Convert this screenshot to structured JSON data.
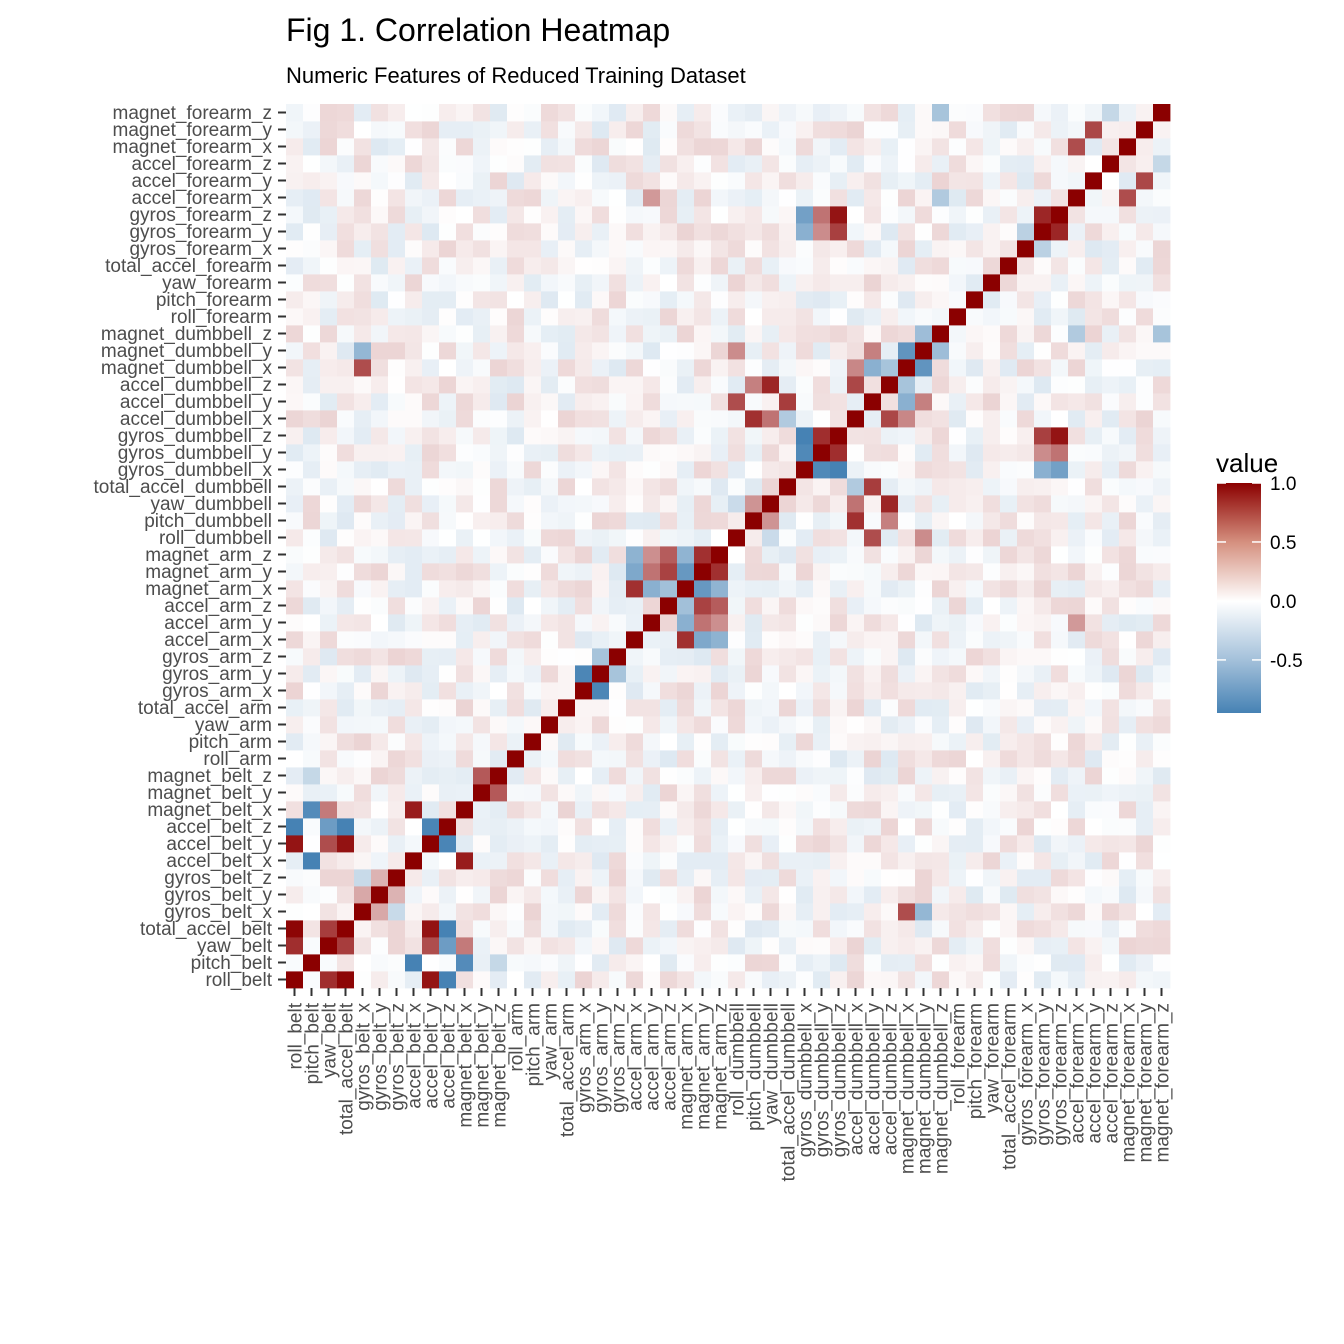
{
  "chart_data": {
    "type": "heatmap",
    "title": "Fig 1. Correlation Heatmap",
    "subtitle": "Numeric Features of Reduced Training Dataset",
    "xlabel": "",
    "ylabel": "",
    "variables": [
      "roll_belt",
      "pitch_belt",
      "yaw_belt",
      "total_accel_belt",
      "gyros_belt_x",
      "gyros_belt_y",
      "gyros_belt_z",
      "accel_belt_x",
      "accel_belt_y",
      "accel_belt_z",
      "magnet_belt_x",
      "magnet_belt_y",
      "magnet_belt_z",
      "roll_arm",
      "pitch_arm",
      "yaw_arm",
      "total_accel_arm",
      "gyros_arm_x",
      "gyros_arm_y",
      "gyros_arm_z",
      "accel_arm_x",
      "accel_arm_y",
      "accel_arm_z",
      "magnet_arm_x",
      "magnet_arm_y",
      "magnet_arm_z",
      "roll_dumbbell",
      "pitch_dumbbell",
      "yaw_dumbbell",
      "total_accel_dumbbell",
      "gyros_dumbbell_x",
      "gyros_dumbbell_y",
      "gyros_dumbbell_z",
      "accel_dumbbell_x",
      "accel_dumbbell_y",
      "accel_dumbbell_z",
      "magnet_dumbbell_x",
      "magnet_dumbbell_y",
      "magnet_dumbbell_z",
      "roll_forearm",
      "pitch_forearm",
      "yaw_forearm",
      "total_accel_forearm",
      "gyros_forearm_x",
      "gyros_forearm_y",
      "gyros_forearm_z",
      "accel_forearm_x",
      "accel_forearm_y",
      "accel_forearm_z",
      "magnet_forearm_x",
      "magnet_forearm_y",
      "magnet_forearm_z"
    ],
    "strong_pairs": [
      [
        "roll_belt",
        "total_accel_belt",
        0.98
      ],
      [
        "roll_belt",
        "yaw_belt",
        0.82
      ],
      [
        "roll_belt",
        "accel_belt_y",
        0.92
      ],
      [
        "roll_belt",
        "accel_belt_z",
        -0.99
      ],
      [
        "pitch_belt",
        "accel_belt_x",
        -0.97
      ],
      [
        "pitch_belt",
        "magnet_belt_x",
        -0.88
      ],
      [
        "pitch_belt",
        "magnet_belt_z",
        -0.3
      ],
      [
        "yaw_belt",
        "total_accel_belt",
        0.76
      ],
      [
        "yaw_belt",
        "accel_belt_z",
        -0.75
      ],
      [
        "yaw_belt",
        "accel_belt_y",
        0.7
      ],
      [
        "yaw_belt",
        "magnet_belt_x",
        0.52
      ],
      [
        "total_accel_belt",
        "accel_belt_y",
        0.93
      ],
      [
        "total_accel_belt",
        "accel_belt_z",
        -0.97
      ],
      [
        "gyros_belt_x",
        "gyros_belt_y",
        0.34
      ],
      [
        "gyros_belt_x",
        "gyros_belt_z",
        -0.28
      ],
      [
        "gyros_belt_y",
        "gyros_belt_z",
        0.3
      ],
      [
        "accel_belt_x",
        "magnet_belt_x",
        0.89
      ],
      [
        "accel_belt_y",
        "accel_belt_z",
        -0.93
      ],
      [
        "magnet_belt_y",
        "magnet_belt_z",
        0.65
      ],
      [
        "gyros_arm_x",
        "gyros_arm_y",
        -0.92
      ],
      [
        "gyros_arm_y",
        "gyros_arm_z",
        -0.45
      ],
      [
        "accel_arm_x",
        "magnet_arm_x",
        0.81
      ],
      [
        "accel_arm_x",
        "magnet_arm_y",
        -0.66
      ],
      [
        "accel_arm_x",
        "magnet_arm_z",
        -0.58
      ],
      [
        "accel_arm_y",
        "magnet_arm_x",
        -0.6
      ],
      [
        "accel_arm_y",
        "magnet_arm_y",
        0.55
      ],
      [
        "accel_arm_y",
        "magnet_arm_z",
        0.44
      ],
      [
        "accel_arm_z",
        "magnet_arm_x",
        -0.48
      ],
      [
        "accel_arm_z",
        "magnet_arm_y",
        0.74
      ],
      [
        "accel_arm_z",
        "magnet_arm_z",
        0.64
      ],
      [
        "magnet_arm_x",
        "magnet_arm_y",
        -0.78
      ],
      [
        "magnet_arm_x",
        "magnet_arm_z",
        -0.57
      ],
      [
        "magnet_arm_y",
        "magnet_arm_z",
        0.81
      ],
      [
        "roll_dumbbell",
        "yaw_dumbbell",
        -0.27
      ],
      [
        "roll_dumbbell",
        "accel_dumbbell_y",
        0.7
      ],
      [
        "roll_dumbbell",
        "magnet_dumbbell_y",
        0.45
      ],
      [
        "pitch_dumbbell",
        "yaw_dumbbell",
        0.42
      ],
      [
        "pitch_dumbbell",
        "accel_dumbbell_x",
        0.81
      ],
      [
        "pitch_dumbbell",
        "accel_dumbbell_z",
        0.5
      ],
      [
        "yaw_dumbbell",
        "accel_dumbbell_z",
        0.85
      ],
      [
        "yaw_dumbbell",
        "accel_dumbbell_x",
        0.55
      ],
      [
        "total_accel_dumbbell",
        "accel_dumbbell_y",
        0.76
      ],
      [
        "total_accel_dumbbell",
        "accel_dumbbell_x",
        -0.4
      ],
      [
        "gyros_dumbbell_x",
        "gyros_dumbbell_y",
        -0.9
      ],
      [
        "gyros_dumbbell_x",
        "gyros_dumbbell_z",
        -0.95
      ],
      [
        "gyros_dumbbell_y",
        "gyros_dumbbell_z",
        0.82
      ],
      [
        "gyros_dumbbell_x",
        "gyros_forearm_y",
        -0.6
      ],
      [
        "gyros_dumbbell_x",
        "gyros_forearm_z",
        -0.72
      ],
      [
        "gyros_dumbbell_y",
        "gyros_forearm_y",
        0.45
      ],
      [
        "gyros_dumbbell_y",
        "gyros_forearm_z",
        0.55
      ],
      [
        "gyros_dumbbell_z",
        "gyros_forearm_y",
        0.75
      ],
      [
        "gyros_dumbbell_z",
        "gyros_forearm_z",
        0.92
      ],
      [
        "accel_dumbbell_x",
        "accel_dumbbell_z",
        0.72
      ],
      [
        "accel_dumbbell_x",
        "magnet_dumbbell_x",
        0.47
      ],
      [
        "accel_dumbbell_y",
        "magnet_dumbbell_x",
        -0.6
      ],
      [
        "accel_dumbbell_y",
        "magnet_dumbbell_y",
        0.5
      ],
      [
        "accel_dumbbell_z",
        "magnet_dumbbell_x",
        -0.45
      ],
      [
        "magnet_dumbbell_x",
        "magnet_dumbbell_y",
        -0.81
      ],
      [
        "magnet_dumbbell_y",
        "magnet_dumbbell_z",
        -0.5
      ],
      [
        "magnet_dumbbell_x",
        "gyros_belt_x",
        0.7
      ],
      [
        "magnet_dumbbell_y",
        "gyros_belt_x",
        -0.55
      ],
      [
        "gyros_forearm_y",
        "gyros_forearm_z",
        0.85
      ],
      [
        "gyros_forearm_x",
        "gyros_forearm_y",
        -0.35
      ],
      [
        "accel_forearm_x",
        "magnet_forearm_x",
        0.7
      ],
      [
        "accel_forearm_y",
        "magnet_forearm_y",
        0.72
      ],
      [
        "accel_forearm_z",
        "magnet_forearm_z",
        -0.3
      ],
      [
        "accel_forearm_x",
        "accel_arm_y",
        0.4
      ],
      [
        "magnet_dumbbell_z",
        "accel_forearm_x",
        -0.4
      ],
      [
        "magnet_dumbbell_z",
        "magnet_forearm_z",
        -0.45
      ],
      [
        "magnet_forearm_x",
        "magnet_forearm_z",
        -0.1
      ]
    ],
    "color_scale": {
      "low": "#4682b4",
      "mid": "#ffffff",
      "high": "#8b0000",
      "range": [
        -0.95,
        1.0
      ]
    },
    "legend": {
      "title": "value",
      "labels": [
        "1.0",
        "0.5",
        "0.0",
        "-0.5"
      ],
      "position": "right"
    },
    "grid": true
  }
}
